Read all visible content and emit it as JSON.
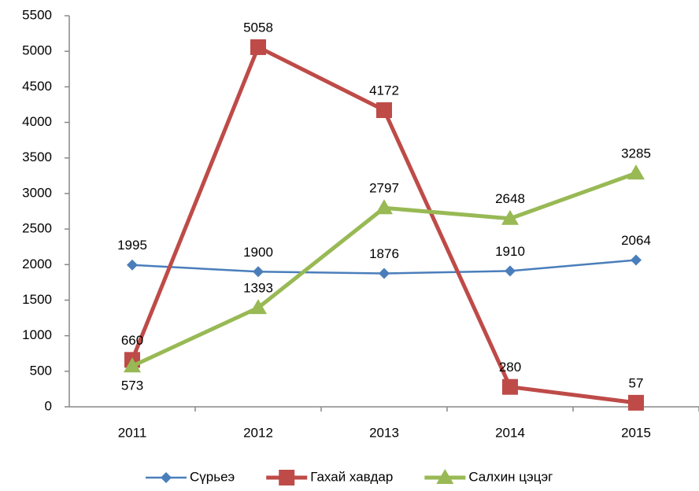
{
  "chart_data": {
    "type": "line",
    "categories": [
      "2011",
      "2012",
      "2013",
      "2014",
      "2015"
    ],
    "series": [
      {
        "name": "Сүрьеэ",
        "color": "#4a7ebb",
        "marker": "diamond",
        "values": [
          1995,
          1900,
          1876,
          1910,
          2064
        ]
      },
      {
        "name": "Гахай хавдар",
        "color": "#be4b48",
        "marker": "square",
        "values": [
          660,
          5058,
          4172,
          280,
          57
        ]
      },
      {
        "name": "Салхин цэцэг",
        "color": "#98b954",
        "marker": "triangle",
        "values": [
          573,
          1393,
          2797,
          2648,
          3285
        ]
      }
    ],
    "ylim": [
      0,
      5500
    ],
    "yticks": [
      0,
      500,
      1000,
      1500,
      2000,
      2500,
      3000,
      3500,
      4000,
      4500,
      5000,
      5500
    ],
    "grid": false,
    "legend": "bottom"
  }
}
